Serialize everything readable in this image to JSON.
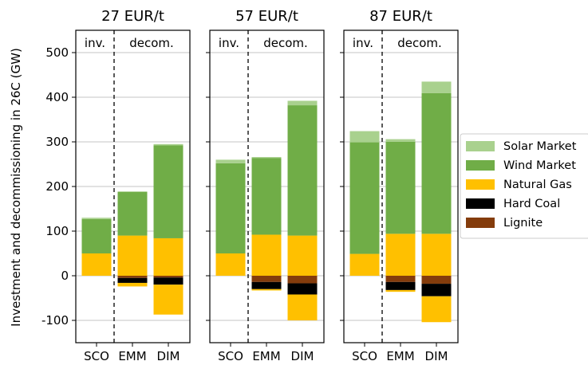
{
  "chart_data": {
    "type": "bar",
    "stacked": true,
    "ylabel": "Investment and decommissioning in 26C (GW)",
    "ylim": [
      -150,
      550
    ],
    "yticks": [
      -100,
      0,
      100,
      200,
      300,
      400,
      500
    ],
    "grid": "y",
    "categories": [
      "SCO",
      "EMM",
      "DIM"
    ],
    "section_labels": [
      "inv.",
      "decom."
    ],
    "legend": {
      "placement": "right",
      "entries": [
        {
          "name": "Solar Market",
          "color": "#a9d18e"
        },
        {
          "name": "Wind Market",
          "color": "#70ad47"
        },
        {
          "name": "Natural Gas",
          "color": "#ffc000"
        },
        {
          "name": "Hard Coal",
          "color": "#000000"
        },
        {
          "name": "Lignite",
          "color": "#843c0c"
        }
      ]
    },
    "panels": [
      {
        "title": "27 EUR/t",
        "bars": [
          {
            "category": "SCO",
            "positive": [
              [
                "Natural Gas",
                50
              ],
              [
                "Wind Market",
                77
              ],
              [
                "Solar Market",
                3
              ]
            ],
            "negative": []
          },
          {
            "category": "EMM",
            "positive": [
              [
                "Natural Gas",
                90
              ],
              [
                "Wind Market",
                98
              ],
              [
                "Solar Market",
                1
              ]
            ],
            "negative": [
              [
                "Lignite",
                5
              ],
              [
                "Hard Coal",
                11
              ],
              [
                "Natural Gas",
                8
              ]
            ]
          },
          {
            "category": "DIM",
            "positive": [
              [
                "Natural Gas",
                84
              ],
              [
                "Wind Market",
                208
              ],
              [
                "Solar Market",
                3
              ]
            ],
            "negative": [
              [
                "Lignite",
                4
              ],
              [
                "Hard Coal",
                16
              ],
              [
                "Natural Gas",
                67
              ]
            ]
          }
        ]
      },
      {
        "title": "57 EUR/t",
        "bars": [
          {
            "category": "SCO",
            "positive": [
              [
                "Natural Gas",
                50
              ],
              [
                "Wind Market",
                202
              ],
              [
                "Solar Market",
                8
              ]
            ],
            "negative": []
          },
          {
            "category": "EMM",
            "positive": [
              [
                "Natural Gas",
                92
              ],
              [
                "Wind Market",
                172
              ],
              [
                "Solar Market",
                2
              ]
            ],
            "negative": [
              [
                "Lignite",
                14
              ],
              [
                "Hard Coal",
                16
              ],
              [
                "Natural Gas",
                3
              ]
            ]
          },
          {
            "category": "DIM",
            "positive": [
              [
                "Natural Gas",
                90
              ],
              [
                "Wind Market",
                292
              ],
              [
                "Solar Market",
                10
              ]
            ],
            "negative": [
              [
                "Lignite",
                17
              ],
              [
                "Hard Coal",
                25
              ],
              [
                "Natural Gas",
                58
              ]
            ]
          }
        ]
      },
      {
        "title": "87 EUR/t",
        "bars": [
          {
            "category": "SCO",
            "positive": [
              [
                "Natural Gas",
                49
              ],
              [
                "Wind Market",
                250
              ],
              [
                "Solar Market",
                25
              ]
            ],
            "negative": []
          },
          {
            "category": "EMM",
            "positive": [
              [
                "Natural Gas",
                94
              ],
              [
                "Wind Market",
                206
              ],
              [
                "Solar Market",
                6
              ]
            ],
            "negative": [
              [
                "Lignite",
                14
              ],
              [
                "Hard Coal",
                18
              ],
              [
                "Natural Gas",
                4
              ]
            ]
          },
          {
            "category": "DIM",
            "positive": [
              [
                "Natural Gas",
                94
              ],
              [
                "Wind Market",
                315
              ],
              [
                "Solar Market",
                26
              ]
            ],
            "negative": [
              [
                "Lignite",
                18
              ],
              [
                "Hard Coal",
                28
              ],
              [
                "Natural Gas",
                58
              ]
            ]
          }
        ]
      }
    ]
  }
}
